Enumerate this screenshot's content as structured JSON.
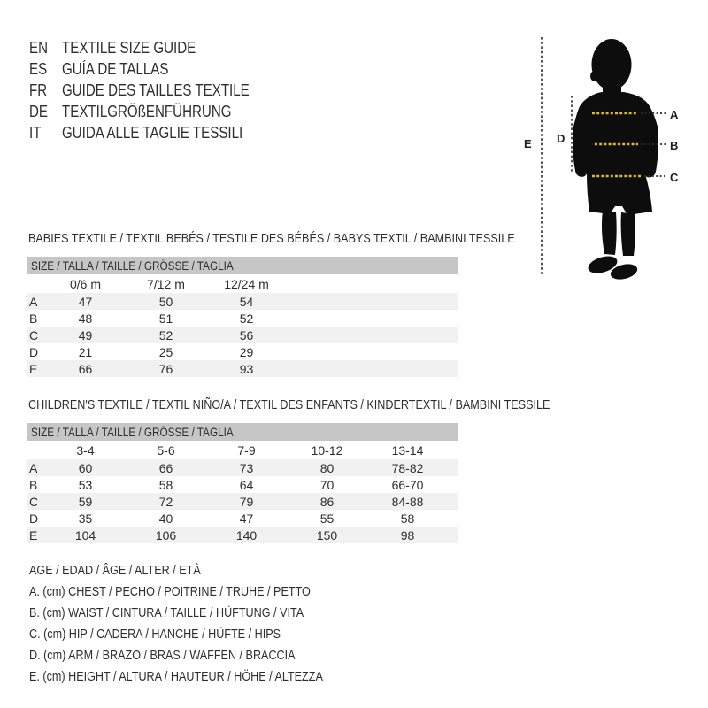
{
  "languages": [
    {
      "code": "EN",
      "title": "TEXTILE SIZE GUIDE"
    },
    {
      "code": "ES",
      "title": "GUÍA DE TALLAS"
    },
    {
      "code": "FR",
      "title": "GUIDE DES TAILLES TEXTILE"
    },
    {
      "code": "DE",
      "title": "TEXTILGRÖßENFÜHRUNG"
    },
    {
      "code": "IT",
      "title": "GUIDA ALLE TAGLIE TESSILI"
    }
  ],
  "figure": {
    "measure_labels": {
      "a": "A",
      "b": "B",
      "c": "C",
      "d": "D",
      "e": "E"
    },
    "colors": {
      "silhouette": "#0d0d0d",
      "measure_dash": "#d8bb25",
      "extension_dots": "#2b2b2b"
    }
  },
  "tables": [
    {
      "title": "BABIES TEXTILE / TEXTIL BEBÉS / TESTILE DES BÉBÉS / BABYS TEXTIL / BAMBINI TESSILE",
      "size_header": "SIZE / TALLA / TAILLE / GRÖSSE / TAGLIA",
      "columns": [
        "0/6 m",
        "7/12 m",
        "12/24 m"
      ],
      "rows": [
        {
          "label": "A",
          "values": [
            "47",
            "50",
            "54"
          ]
        },
        {
          "label": "B",
          "values": [
            "48",
            "51",
            "52"
          ]
        },
        {
          "label": "C",
          "values": [
            "49",
            "52",
            "56"
          ]
        },
        {
          "label": "D",
          "values": [
            "21",
            "25",
            "29"
          ]
        },
        {
          "label": "E",
          "values": [
            "66",
            "76",
            "93"
          ]
        }
      ]
    },
    {
      "title": "CHILDREN'S TEXTILE / TEXTIL NIÑO/A / TEXTIL DES ENFANTS / KINDERTEXTIL / BAMBINI TESSILE",
      "size_header": "SIZE / TALLA / TAILLE / GRÖSSE / TAGLIA",
      "columns": [
        "3-4",
        "5-6",
        "7-9",
        "10-12",
        "13-14"
      ],
      "rows": [
        {
          "label": "A",
          "values": [
            "60",
            "66",
            "73",
            "80",
            "78-82"
          ]
        },
        {
          "label": "B",
          "values": [
            "53",
            "58",
            "64",
            "70",
            "66-70"
          ]
        },
        {
          "label": "C",
          "values": [
            "59",
            "72",
            "79",
            "86",
            "84-88"
          ]
        },
        {
          "label": "D",
          "values": [
            "35",
            "40",
            "47",
            "55",
            "58"
          ]
        },
        {
          "label": "E",
          "values": [
            "104",
            "106",
            "140",
            "150",
            "98"
          ]
        }
      ]
    }
  ],
  "legend": {
    "lines": [
      "AGE / EDAD / ÂGE / ALTER / ETÀ",
      "A. (cm) CHEST / PECHO / POITRINE / TRUHE / PETTO",
      "B. (cm) WAIST / CINTURA / TAILLE / HÜFTUNG / VITA",
      "C. (cm) HIP / CADERA / HANCHE / HÜFTE / HIPS",
      "D. (cm) ARM / BRAZO / BRAS / WAFFEN / BRACCIA",
      "E. (cm) HEIGHT / ALTURA / HAUTEUR / HÖHE / ALTEZZA"
    ]
  }
}
